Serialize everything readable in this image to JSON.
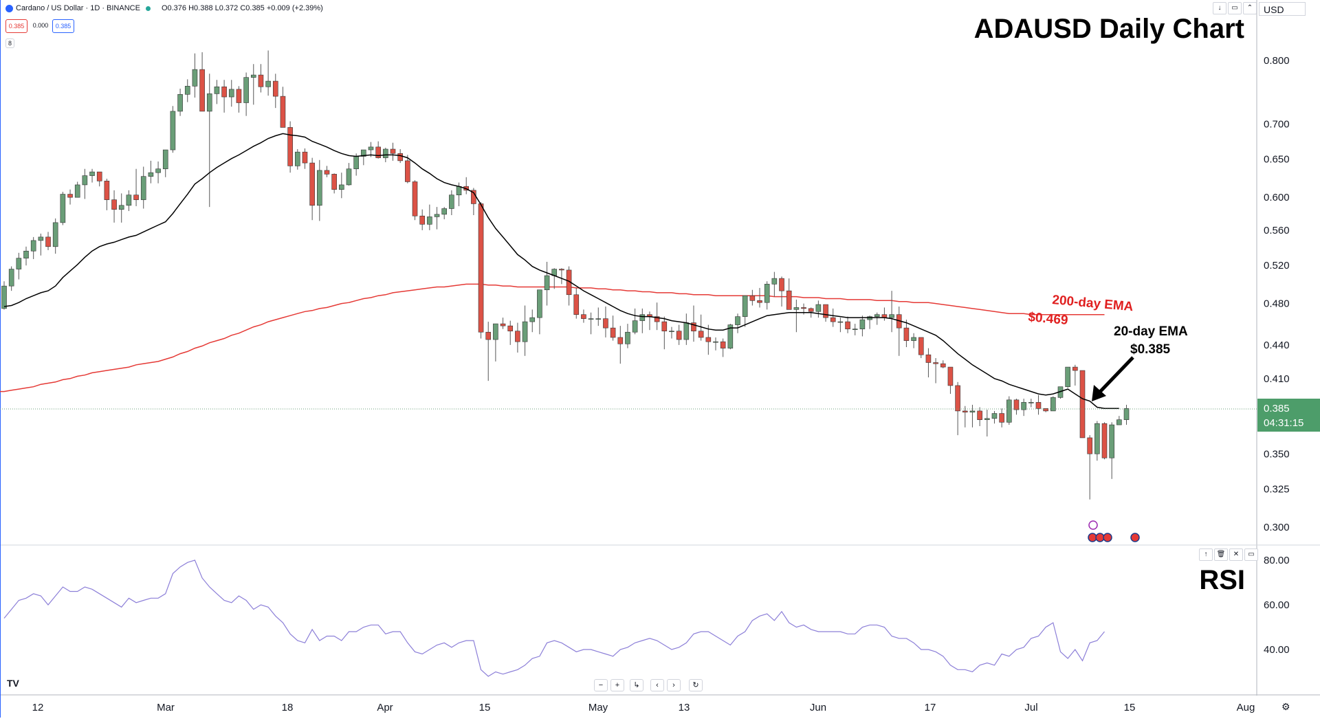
{
  "header": {
    "symbol_title": "Cardano / US Dollar · 1D · BINANCE",
    "ohlc": "O0.376 H0.388 L0.372 C0.385 +0.009 (+2.39%)",
    "sell_price": "0.385",
    "spread": "0.000",
    "buy_price": "0.385",
    "study_count": "8"
  },
  "currency": "USD",
  "titles": {
    "main": "ADAUSD Daily Chart",
    "rsi": "RSI"
  },
  "annotations": {
    "ema200_label": "200-day EMA",
    "ema200_value": "$0.469",
    "ema20_label": "20-day EMA",
    "ema20_value": "$0.385"
  },
  "price_tag": {
    "price": "0.385",
    "countdown": "04:31:15"
  },
  "colors": {
    "up": "#6a9e78",
    "down": "#dc5246",
    "ema20": "#000000",
    "ema200": "#e53935",
    "rsi": "#8c7fd8",
    "tag": "#4d9d6a",
    "annotation_red": "#e02020"
  },
  "chart_data": {
    "type": "candlestick",
    "title": "ADAUSD Daily Chart",
    "y_axis": {
      "scale": "log",
      "ticks": [
        "0.800",
        "0.700",
        "0.650",
        "0.600",
        "0.560",
        "0.520",
        "0.480",
        "0.440",
        "0.410",
        "0.385",
        "0.350",
        "0.325",
        "0.300"
      ]
    },
    "x_axis_labels": [
      "12",
      "Mar",
      "18",
      "Apr",
      "15",
      "May",
      "13",
      "Jun",
      "17",
      "Jul",
      "15",
      "Aug"
    ],
    "candles_ohlc": [
      [
        0.475,
        0.503,
        0.474,
        0.498
      ],
      [
        0.498,
        0.519,
        0.493,
        0.516
      ],
      [
        0.516,
        0.534,
        0.505,
        0.528
      ],
      [
        0.528,
        0.541,
        0.52,
        0.536
      ],
      [
        0.536,
        0.552,
        0.527,
        0.548
      ],
      [
        0.548,
        0.556,
        0.531,
        0.552
      ],
      [
        0.552,
        0.558,
        0.537,
        0.541
      ],
      [
        0.541,
        0.574,
        0.533,
        0.569
      ],
      [
        0.569,
        0.607,
        0.566,
        0.604
      ],
      [
        0.604,
        0.61,
        0.591,
        0.6
      ],
      [
        0.6,
        0.62,
        0.6,
        0.616
      ],
      [
        0.616,
        0.637,
        0.598,
        0.628
      ],
      [
        0.628,
        0.637,
        0.619,
        0.633
      ],
      [
        0.633,
        0.633,
        0.614,
        0.621
      ],
      [
        0.621,
        0.624,
        0.584,
        0.597
      ],
      [
        0.597,
        0.609,
        0.569,
        0.585
      ],
      [
        0.585,
        0.605,
        0.569,
        0.59
      ],
      [
        0.59,
        0.609,
        0.583,
        0.603
      ],
      [
        0.603,
        0.637,
        0.589,
        0.597
      ],
      [
        0.597,
        0.64,
        0.586,
        0.627
      ],
      [
        0.627,
        0.648,
        0.618,
        0.632
      ],
      [
        0.632,
        0.647,
        0.618,
        0.637
      ],
      [
        0.637,
        0.661,
        0.626,
        0.663
      ],
      [
        0.663,
        0.727,
        0.659,
        0.719
      ],
      [
        0.719,
        0.754,
        0.712,
        0.745
      ],
      [
        0.745,
        0.769,
        0.733,
        0.758
      ],
      [
        0.758,
        0.812,
        0.74,
        0.785
      ],
      [
        0.785,
        0.814,
        0.721,
        0.719
      ],
      [
        0.719,
        0.778,
        0.588,
        0.746
      ],
      [
        0.746,
        0.768,
        0.73,
        0.757
      ],
      [
        0.757,
        0.768,
        0.717,
        0.741
      ],
      [
        0.741,
        0.768,
        0.726,
        0.753
      ],
      [
        0.753,
        0.758,
        0.717,
        0.732
      ],
      [
        0.732,
        0.78,
        0.712,
        0.772
      ],
      [
        0.772,
        0.794,
        0.729,
        0.776
      ],
      [
        0.776,
        0.794,
        0.748,
        0.757
      ],
      [
        0.757,
        0.817,
        0.743,
        0.766
      ],
      [
        0.766,
        0.778,
        0.724,
        0.742
      ],
      [
        0.742,
        0.757,
        0.714,
        0.695
      ],
      [
        0.695,
        0.704,
        0.632,
        0.641
      ],
      [
        0.641,
        0.664,
        0.636,
        0.66
      ],
      [
        0.66,
        0.665,
        0.637,
        0.645
      ],
      [
        0.645,
        0.652,
        0.572,
        0.59
      ],
      [
        0.59,
        0.649,
        0.571,
        0.635
      ],
      [
        0.635,
        0.641,
        0.626,
        0.63
      ],
      [
        0.63,
        0.631,
        0.605,
        0.61
      ],
      [
        0.61,
        0.632,
        0.599,
        0.616
      ],
      [
        0.616,
        0.645,
        0.615,
        0.637
      ],
      [
        0.637,
        0.658,
        0.628,
        0.654
      ],
      [
        0.654,
        0.661,
        0.642,
        0.663
      ],
      [
        0.663,
        0.674,
        0.653,
        0.667
      ],
      [
        0.667,
        0.675,
        0.651,
        0.652
      ],
      [
        0.652,
        0.666,
        0.646,
        0.664
      ],
      [
        0.664,
        0.673,
        0.648,
        0.658
      ],
      [
        0.658,
        0.664,
        0.645,
        0.648
      ],
      [
        0.648,
        0.656,
        0.618,
        0.62
      ],
      [
        0.62,
        0.622,
        0.572,
        0.577
      ],
      [
        0.577,
        0.585,
        0.56,
        0.567
      ],
      [
        0.567,
        0.591,
        0.56,
        0.576
      ],
      [
        0.576,
        0.588,
        0.561,
        0.579
      ],
      [
        0.579,
        0.588,
        0.573,
        0.586
      ],
      [
        0.586,
        0.609,
        0.578,
        0.603
      ],
      [
        0.603,
        0.619,
        0.589,
        0.614
      ],
      [
        0.614,
        0.626,
        0.604,
        0.609
      ],
      [
        0.609,
        0.612,
        0.578,
        0.592
      ],
      [
        0.592,
        0.594,
        0.446,
        0.452
      ],
      [
        0.452,
        0.462,
        0.408,
        0.445
      ],
      [
        0.445,
        0.459,
        0.425,
        0.46
      ],
      [
        0.46,
        0.466,
        0.455,
        0.458
      ],
      [
        0.458,
        0.463,
        0.44,
        0.453
      ],
      [
        0.453,
        0.461,
        0.433,
        0.443
      ],
      [
        0.443,
        0.478,
        0.43,
        0.462
      ],
      [
        0.462,
        0.474,
        0.452,
        0.466
      ],
      [
        0.466,
        0.482,
        0.45,
        0.494
      ],
      [
        0.494,
        0.524,
        0.478,
        0.509
      ],
      [
        0.509,
        0.517,
        0.495,
        0.516
      ],
      [
        0.516,
        0.517,
        0.5,
        0.515
      ],
      [
        0.515,
        0.519,
        0.478,
        0.489
      ],
      [
        0.489,
        0.496,
        0.465,
        0.469
      ],
      [
        0.469,
        0.474,
        0.461,
        0.465
      ],
      [
        0.465,
        0.471,
        0.45,
        0.465
      ],
      [
        0.465,
        0.476,
        0.458,
        0.465
      ],
      [
        0.465,
        0.477,
        0.447,
        0.456
      ],
      [
        0.456,
        0.468,
        0.444,
        0.447
      ],
      [
        0.447,
        0.458,
        0.423,
        0.441
      ],
      [
        0.441,
        0.46,
        0.437,
        0.452
      ],
      [
        0.452,
        0.475,
        0.45,
        0.463
      ],
      [
        0.463,
        0.475,
        0.451,
        0.469
      ],
      [
        0.469,
        0.472,
        0.454,
        0.467
      ],
      [
        0.467,
        0.481,
        0.454,
        0.462
      ],
      [
        0.462,
        0.467,
        0.436,
        0.453
      ],
      [
        0.453,
        0.457,
        0.446,
        0.453
      ],
      [
        0.453,
        0.459,
        0.44,
        0.445
      ],
      [
        0.445,
        0.47,
        0.44,
        0.461
      ],
      [
        0.461,
        0.478,
        0.443,
        0.453
      ],
      [
        0.453,
        0.469,
        0.444,
        0.447
      ],
      [
        0.447,
        0.459,
        0.431,
        0.443
      ],
      [
        0.443,
        0.447,
        0.435,
        0.443
      ],
      [
        0.443,
        0.446,
        0.429,
        0.437
      ],
      [
        0.437,
        0.46,
        0.436,
        0.459
      ],
      [
        0.459,
        0.47,
        0.451,
        0.467
      ],
      [
        0.467,
        0.486,
        0.457,
        0.488
      ],
      [
        0.488,
        0.494,
        0.478,
        0.483
      ],
      [
        0.483,
        0.496,
        0.476,
        0.481
      ],
      [
        0.481,
        0.503,
        0.474,
        0.5
      ],
      [
        0.5,
        0.513,
        0.487,
        0.506
      ],
      [
        0.506,
        0.508,
        0.477,
        0.493
      ],
      [
        0.493,
        0.506,
        0.481,
        0.474
      ],
      [
        0.474,
        0.484,
        0.452,
        0.476
      ],
      [
        0.476,
        0.48,
        0.469,
        0.475
      ],
      [
        0.475,
        0.476,
        0.466,
        0.472
      ],
      [
        0.472,
        0.483,
        0.466,
        0.479
      ],
      [
        0.479,
        0.477,
        0.462,
        0.466
      ],
      [
        0.466,
        0.475,
        0.457,
        0.462
      ],
      [
        0.462,
        0.466,
        0.452,
        0.462
      ],
      [
        0.462,
        0.467,
        0.451,
        0.455
      ],
      [
        0.455,
        0.46,
        0.449,
        0.455
      ],
      [
        0.455,
        0.468,
        0.448,
        0.464
      ],
      [
        0.464,
        0.468,
        0.455,
        0.467
      ],
      [
        0.467,
        0.471,
        0.459,
        0.469
      ],
      [
        0.469,
        0.476,
        0.463,
        0.466
      ],
      [
        0.466,
        0.493,
        0.452,
        0.469
      ],
      [
        0.469,
        0.477,
        0.43,
        0.456
      ],
      [
        0.456,
        0.464,
        0.438,
        0.444
      ],
      [
        0.444,
        0.451,
        0.437,
        0.447
      ],
      [
        0.447,
        0.446,
        0.428,
        0.431
      ],
      [
        0.431,
        0.437,
        0.411,
        0.424
      ],
      [
        0.424,
        0.428,
        0.406,
        0.423
      ],
      [
        0.423,
        0.426,
        0.419,
        0.42
      ],
      [
        0.42,
        0.42,
        0.397,
        0.404
      ],
      [
        0.404,
        0.407,
        0.364,
        0.383
      ],
      [
        0.383,
        0.387,
        0.37,
        0.382
      ],
      [
        0.382,
        0.388,
        0.37,
        0.383
      ],
      [
        0.383,
        0.386,
        0.371,
        0.376
      ],
      [
        0.376,
        0.384,
        0.363,
        0.377
      ],
      [
        0.377,
        0.383,
        0.373,
        0.381
      ],
      [
        0.381,
        0.385,
        0.37,
        0.374
      ],
      [
        0.374,
        0.395,
        0.372,
        0.392
      ],
      [
        0.392,
        0.393,
        0.38,
        0.384
      ],
      [
        0.384,
        0.393,
        0.379,
        0.39
      ],
      [
        0.39,
        0.393,
        0.386,
        0.39
      ],
      [
        0.39,
        0.396,
        0.38,
        0.385
      ],
      [
        0.385,
        0.385,
        0.382,
        0.383
      ],
      [
        0.383,
        0.395,
        0.383,
        0.394
      ],
      [
        0.394,
        0.402,
        0.393,
        0.403
      ],
      [
        0.403,
        0.42,
        0.402,
        0.42
      ],
      [
        0.42,
        0.422,
        0.404,
        0.417
      ],
      [
        0.417,
        0.415,
        0.365,
        0.362
      ],
      [
        0.362,
        0.364,
        0.318,
        0.35
      ],
      [
        0.35,
        0.375,
        0.345,
        0.373
      ],
      [
        0.373,
        0.374,
        0.346,
        0.347
      ],
      [
        0.347,
        0.374,
        0.332,
        0.372
      ],
      [
        0.372,
        0.379,
        0.372,
        0.376
      ],
      [
        0.376,
        0.388,
        0.372,
        0.385
      ]
    ],
    "ema20": [
      0.477,
      0.478,
      0.481,
      0.485,
      0.488,
      0.491,
      0.493,
      0.498,
      0.507,
      0.514,
      0.521,
      0.529,
      0.536,
      0.541,
      0.544,
      0.546,
      0.549,
      0.552,
      0.554,
      0.558,
      0.562,
      0.566,
      0.57,
      0.58,
      0.592,
      0.604,
      0.617,
      0.624,
      0.632,
      0.639,
      0.645,
      0.651,
      0.656,
      0.662,
      0.668,
      0.673,
      0.679,
      0.683,
      0.686,
      0.684,
      0.683,
      0.681,
      0.675,
      0.671,
      0.667,
      0.662,
      0.658,
      0.655,
      0.654,
      0.655,
      0.656,
      0.655,
      0.656,
      0.656,
      0.655,
      0.652,
      0.645,
      0.637,
      0.631,
      0.624,
      0.619,
      0.616,
      0.614,
      0.611,
      0.606,
      0.591,
      0.575,
      0.562,
      0.552,
      0.542,
      0.532,
      0.526,
      0.519,
      0.515,
      0.512,
      0.509,
      0.506,
      0.503,
      0.498,
      0.493,
      0.489,
      0.485,
      0.481,
      0.477,
      0.473,
      0.47,
      0.468,
      0.467,
      0.467,
      0.466,
      0.465,
      0.463,
      0.462,
      0.461,
      0.459,
      0.457,
      0.455,
      0.454,
      0.454,
      0.456,
      0.456,
      0.459,
      0.462,
      0.465,
      0.468,
      0.469,
      0.47,
      0.471,
      0.471,
      0.471,
      0.471,
      0.47,
      0.469,
      0.468,
      0.467,
      0.466,
      0.466,
      0.466,
      0.466,
      0.466,
      0.466,
      0.465,
      0.463,
      0.461,
      0.458,
      0.455,
      0.452,
      0.449,
      0.444,
      0.438,
      0.432,
      0.427,
      0.422,
      0.418,
      0.414,
      0.41,
      0.408,
      0.405,
      0.403,
      0.401,
      0.399,
      0.397,
      0.396,
      0.397,
      0.399,
      0.401,
      0.397,
      0.393,
      0.391,
      0.386,
      0.385,
      0.385,
      0.385
    ],
    "ema200": [
      0.399,
      0.4,
      0.401,
      0.402,
      0.403,
      0.405,
      0.406,
      0.407,
      0.409,
      0.41,
      0.412,
      0.413,
      0.415,
      0.416,
      0.417,
      0.418,
      0.419,
      0.42,
      0.422,
      0.423,
      0.424,
      0.425,
      0.427,
      0.429,
      0.432,
      0.434,
      0.437,
      0.439,
      0.442,
      0.444,
      0.446,
      0.449,
      0.451,
      0.454,
      0.457,
      0.459,
      0.462,
      0.464,
      0.466,
      0.468,
      0.47,
      0.472,
      0.473,
      0.475,
      0.476,
      0.478,
      0.48,
      0.481,
      0.483,
      0.485,
      0.486,
      0.488,
      0.489,
      0.491,
      0.492,
      0.493,
      0.494,
      0.495,
      0.496,
      0.497,
      0.497,
      0.498,
      0.499,
      0.5,
      0.5,
      0.5,
      0.499,
      0.499,
      0.498,
      0.498,
      0.497,
      0.497,
      0.497,
      0.497,
      0.497,
      0.497,
      0.497,
      0.497,
      0.496,
      0.496,
      0.496,
      0.495,
      0.495,
      0.494,
      0.494,
      0.493,
      0.493,
      0.492,
      0.492,
      0.491,
      0.491,
      0.491,
      0.49,
      0.49,
      0.489,
      0.489,
      0.489,
      0.488,
      0.488,
      0.488,
      0.488,
      0.488,
      0.488,
      0.488,
      0.488,
      0.487,
      0.487,
      0.487,
      0.487,
      0.486,
      0.486,
      0.486,
      0.485,
      0.485,
      0.485,
      0.484,
      0.484,
      0.484,
      0.484,
      0.483,
      0.483,
      0.483,
      0.482,
      0.482,
      0.481,
      0.481,
      0.481,
      0.48,
      0.479,
      0.478,
      0.477,
      0.476,
      0.475,
      0.474,
      0.473,
      0.472,
      0.471,
      0.47,
      0.47,
      0.47,
      0.469,
      0.469,
      0.469,
      0.469,
      0.469,
      0.469,
      0.469,
      0.469,
      0.469,
      0.469,
      0.469
    ],
    "rsi": {
      "axis_ticks": [
        "80.00",
        "60.00",
        "40.00"
      ],
      "values": [
        54,
        58,
        62,
        63,
        65,
        64,
        60,
        64,
        68,
        66,
        66,
        68,
        67,
        65,
        63,
        61,
        59,
        63,
        61,
        62,
        63,
        63,
        65,
        74,
        77,
        79,
        80,
        72,
        68,
        65,
        62,
        61,
        64,
        62,
        58,
        60,
        59,
        55,
        52,
        47,
        44,
        43,
        49,
        44,
        46,
        46,
        44,
        48,
        48,
        50,
        51,
        51,
        47,
        48,
        48,
        43,
        39,
        38,
        40,
        42,
        43,
        41,
        43,
        44,
        44,
        31,
        28,
        30,
        29,
        30,
        31,
        33,
        36,
        37,
        43,
        44,
        43,
        41,
        39,
        40,
        40,
        39,
        38,
        37,
        40,
        41,
        43,
        44,
        45,
        44,
        42,
        40,
        41,
        43,
        47,
        48,
        48,
        46,
        44,
        42,
        46,
        48,
        53,
        55,
        56,
        53,
        57,
        52,
        50,
        51,
        49,
        48,
        48,
        48,
        48,
        47,
        47,
        50,
        51,
        51,
        50,
        46,
        45,
        45,
        43,
        40,
        40,
        39,
        37,
        33,
        31,
        31,
        30,
        33,
        34,
        33,
        38,
        37,
        40,
        41,
        45,
        46,
        50,
        52,
        39,
        36,
        40,
        35,
        43,
        44,
        48
      ]
    }
  }
}
